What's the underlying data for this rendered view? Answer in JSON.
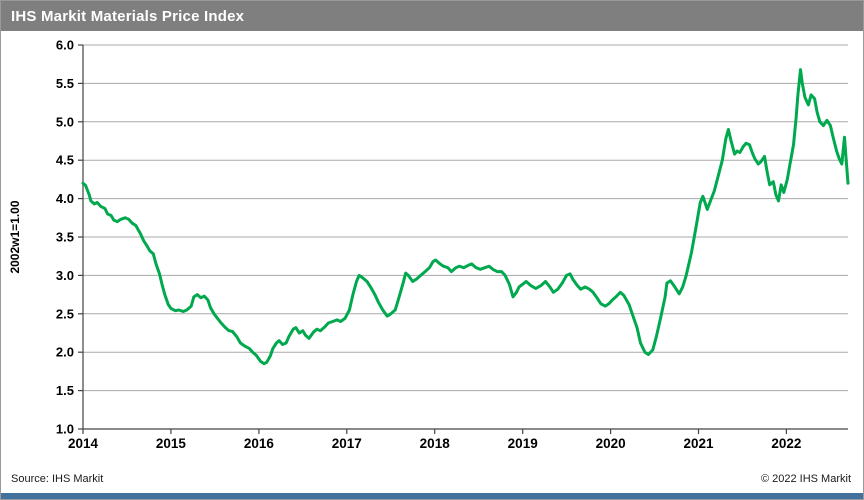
{
  "window": {
    "title": "IHS Markit Materials Price Index"
  },
  "footer": {
    "source": "Source: IHS Markit",
    "copyright": "© 2022  IHS Markit",
    "bar_color": "#41719c"
  },
  "colors": {
    "title_bar_bg": "#7f7f7f",
    "title_text": "#ffffff",
    "line": "#00a84e",
    "gridline": "#a9a9a9",
    "axis": "#444444",
    "tick_label": "#000000"
  },
  "chart_data": {
    "type": "line",
    "title": "IHS Markit Materials Price Index",
    "ylabel": "2002w1=1.00",
    "xlabel": "",
    "grid": true,
    "legend": "none",
    "ylim": [
      1.0,
      6.0
    ],
    "xlim": [
      2014.0,
      2022.7
    ],
    "y_ticks": [
      1.0,
      1.5,
      2.0,
      2.5,
      3.0,
      3.5,
      4.0,
      4.5,
      5.0,
      5.5,
      6.0
    ],
    "y_tick_labels": [
      "1.0",
      "1.5",
      "2.0",
      "2.5",
      "3.0",
      "3.5",
      "4.0",
      "4.5",
      "5.0",
      "5.5",
      "6.0"
    ],
    "x_ticks": [
      2014,
      2015,
      2016,
      2017,
      2018,
      2019,
      2020,
      2021,
      2022
    ],
    "x_tick_labels": [
      "2014",
      "2015",
      "2016",
      "2017",
      "2018",
      "2019",
      "2020",
      "2021",
      "2022"
    ],
    "series": [
      {
        "name": "IHS Markit Materials Price Index (2002w1=1.00)",
        "points": [
          [
            2014.0,
            4.2
          ],
          [
            2014.03,
            4.17
          ],
          [
            2014.07,
            4.05
          ],
          [
            2014.09,
            3.97
          ],
          [
            2014.13,
            3.93
          ],
          [
            2014.16,
            3.95
          ],
          [
            2014.2,
            3.9
          ],
          [
            2014.25,
            3.87
          ],
          [
            2014.28,
            3.8
          ],
          [
            2014.32,
            3.78
          ],
          [
            2014.35,
            3.72
          ],
          [
            2014.39,
            3.7
          ],
          [
            2014.43,
            3.73
          ],
          [
            2014.48,
            3.75
          ],
          [
            2014.52,
            3.73
          ],
          [
            2014.56,
            3.68
          ],
          [
            2014.6,
            3.65
          ],
          [
            2014.65,
            3.55
          ],
          [
            2014.69,
            3.45
          ],
          [
            2014.73,
            3.38
          ],
          [
            2014.76,
            3.32
          ],
          [
            2014.8,
            3.28
          ],
          [
            2014.83,
            3.15
          ],
          [
            2014.87,
            3.02
          ],
          [
            2014.9,
            2.88
          ],
          [
            2014.93,
            2.75
          ],
          [
            2014.97,
            2.62
          ],
          [
            2015.0,
            2.57
          ],
          [
            2015.05,
            2.54
          ],
          [
            2015.09,
            2.55
          ],
          [
            2015.14,
            2.53
          ],
          [
            2015.18,
            2.55
          ],
          [
            2015.23,
            2.6
          ],
          [
            2015.26,
            2.72
          ],
          [
            2015.3,
            2.75
          ],
          [
            2015.34,
            2.71
          ],
          [
            2015.38,
            2.73
          ],
          [
            2015.42,
            2.68
          ],
          [
            2015.45,
            2.58
          ],
          [
            2015.49,
            2.5
          ],
          [
            2015.53,
            2.44
          ],
          [
            2015.57,
            2.38
          ],
          [
            2015.62,
            2.32
          ],
          [
            2015.66,
            2.28
          ],
          [
            2015.7,
            2.27
          ],
          [
            2015.75,
            2.2
          ],
          [
            2015.79,
            2.12
          ],
          [
            2015.84,
            2.08
          ],
          [
            2015.89,
            2.05
          ],
          [
            2015.93,
            2.0
          ],
          [
            2015.97,
            1.96
          ],
          [
            2016.02,
            1.88
          ],
          [
            2016.06,
            1.85
          ],
          [
            2016.09,
            1.87
          ],
          [
            2016.13,
            1.95
          ],
          [
            2016.16,
            2.05
          ],
          [
            2016.2,
            2.12
          ],
          [
            2016.23,
            2.15
          ],
          [
            2016.27,
            2.1
          ],
          [
            2016.31,
            2.12
          ],
          [
            2016.34,
            2.2
          ],
          [
            2016.39,
            2.3
          ],
          [
            2016.42,
            2.32
          ],
          [
            2016.46,
            2.25
          ],
          [
            2016.5,
            2.28
          ],
          [
            2016.53,
            2.22
          ],
          [
            2016.57,
            2.18
          ],
          [
            2016.62,
            2.26
          ],
          [
            2016.66,
            2.3
          ],
          [
            2016.7,
            2.28
          ],
          [
            2016.75,
            2.33
          ],
          [
            2016.79,
            2.38
          ],
          [
            2016.84,
            2.4
          ],
          [
            2016.89,
            2.42
          ],
          [
            2016.93,
            2.4
          ],
          [
            2016.98,
            2.44
          ],
          [
            2017.03,
            2.55
          ],
          [
            2017.07,
            2.75
          ],
          [
            2017.11,
            2.92
          ],
          [
            2017.14,
            3.0
          ],
          [
            2017.18,
            2.97
          ],
          [
            2017.23,
            2.92
          ],
          [
            2017.27,
            2.85
          ],
          [
            2017.32,
            2.75
          ],
          [
            2017.36,
            2.65
          ],
          [
            2017.41,
            2.55
          ],
          [
            2017.46,
            2.47
          ],
          [
            2017.5,
            2.5
          ],
          [
            2017.55,
            2.55
          ],
          [
            2017.59,
            2.7
          ],
          [
            2017.64,
            2.9
          ],
          [
            2017.67,
            3.03
          ],
          [
            2017.7,
            3.0
          ],
          [
            2017.75,
            2.92
          ],
          [
            2017.79,
            2.95
          ],
          [
            2017.84,
            3.0
          ],
          [
            2017.89,
            3.05
          ],
          [
            2017.94,
            3.1
          ],
          [
            2017.98,
            3.18
          ],
          [
            2018.01,
            3.2
          ],
          [
            2018.06,
            3.15
          ],
          [
            2018.1,
            3.12
          ],
          [
            2018.15,
            3.1
          ],
          [
            2018.19,
            3.05
          ],
          [
            2018.24,
            3.1
          ],
          [
            2018.28,
            3.12
          ],
          [
            2018.33,
            3.1
          ],
          [
            2018.38,
            3.13
          ],
          [
            2018.42,
            3.15
          ],
          [
            2018.47,
            3.1
          ],
          [
            2018.52,
            3.08
          ],
          [
            2018.57,
            3.1
          ],
          [
            2018.62,
            3.12
          ],
          [
            2018.66,
            3.08
          ],
          [
            2018.71,
            3.05
          ],
          [
            2018.76,
            3.05
          ],
          [
            2018.8,
            3.0
          ],
          [
            2018.85,
            2.88
          ],
          [
            2018.89,
            2.72
          ],
          [
            2018.93,
            2.78
          ],
          [
            2018.96,
            2.85
          ],
          [
            2019.04,
            2.92
          ],
          [
            2019.09,
            2.87
          ],
          [
            2019.15,
            2.83
          ],
          [
            2019.21,
            2.87
          ],
          [
            2019.26,
            2.92
          ],
          [
            2019.31,
            2.85
          ],
          [
            2019.35,
            2.78
          ],
          [
            2019.4,
            2.82
          ],
          [
            2019.45,
            2.9
          ],
          [
            2019.5,
            3.0
          ],
          [
            2019.54,
            3.02
          ],
          [
            2019.57,
            2.95
          ],
          [
            2019.62,
            2.87
          ],
          [
            2019.66,
            2.82
          ],
          [
            2019.71,
            2.85
          ],
          [
            2019.76,
            2.82
          ],
          [
            2019.8,
            2.78
          ],
          [
            2019.85,
            2.7
          ],
          [
            2019.89,
            2.63
          ],
          [
            2019.94,
            2.6
          ],
          [
            2019.98,
            2.63
          ],
          [
            2020.02,
            2.68
          ],
          [
            2020.06,
            2.72
          ],
          [
            2020.11,
            2.78
          ],
          [
            2020.15,
            2.74
          ],
          [
            2020.21,
            2.62
          ],
          [
            2020.24,
            2.52
          ],
          [
            2020.3,
            2.32
          ],
          [
            2020.34,
            2.12
          ],
          [
            2020.39,
            2.0
          ],
          [
            2020.43,
            1.97
          ],
          [
            2020.48,
            2.03
          ],
          [
            2020.52,
            2.2
          ],
          [
            2020.57,
            2.45
          ],
          [
            2020.62,
            2.72
          ],
          [
            2020.64,
            2.9
          ],
          [
            2020.68,
            2.93
          ],
          [
            2020.73,
            2.85
          ],
          [
            2020.78,
            2.76
          ],
          [
            2020.82,
            2.85
          ],
          [
            2020.86,
            3.0
          ],
          [
            2020.92,
            3.3
          ],
          [
            2020.97,
            3.62
          ],
          [
            2021.02,
            3.95
          ],
          [
            2021.05,
            4.03
          ],
          [
            2021.1,
            3.86
          ],
          [
            2021.13,
            3.95
          ],
          [
            2021.18,
            4.1
          ],
          [
            2021.22,
            4.28
          ],
          [
            2021.27,
            4.5
          ],
          [
            2021.31,
            4.78
          ],
          [
            2021.34,
            4.9
          ],
          [
            2021.37,
            4.75
          ],
          [
            2021.41,
            4.58
          ],
          [
            2021.44,
            4.62
          ],
          [
            2021.47,
            4.6
          ],
          [
            2021.51,
            4.68
          ],
          [
            2021.54,
            4.72
          ],
          [
            2021.58,
            4.7
          ],
          [
            2021.61,
            4.6
          ],
          [
            2021.64,
            4.52
          ],
          [
            2021.68,
            4.45
          ],
          [
            2021.71,
            4.48
          ],
          [
            2021.75,
            4.55
          ],
          [
            2021.78,
            4.35
          ],
          [
            2021.81,
            4.18
          ],
          [
            2021.85,
            4.22
          ],
          [
            2021.88,
            4.05
          ],
          [
            2021.91,
            3.97
          ],
          [
            2021.94,
            4.18
          ],
          [
            2021.97,
            4.08
          ],
          [
            2022.01,
            4.25
          ],
          [
            2022.04,
            4.45
          ],
          [
            2022.08,
            4.7
          ],
          [
            2022.11,
            5.05
          ],
          [
            2022.13,
            5.35
          ],
          [
            2022.16,
            5.68
          ],
          [
            2022.18,
            5.5
          ],
          [
            2022.21,
            5.32
          ],
          [
            2022.25,
            5.22
          ],
          [
            2022.28,
            5.35
          ],
          [
            2022.32,
            5.3
          ],
          [
            2022.35,
            5.12
          ],
          [
            2022.38,
            5.0
          ],
          [
            2022.42,
            4.95
          ],
          [
            2022.46,
            5.02
          ],
          [
            2022.5,
            4.95
          ],
          [
            2022.53,
            4.8
          ],
          [
            2022.57,
            4.62
          ],
          [
            2022.6,
            4.52
          ],
          [
            2022.63,
            4.45
          ],
          [
            2022.66,
            4.8
          ],
          [
            2022.68,
            4.5
          ],
          [
            2022.7,
            4.2
          ]
        ]
      }
    ]
  }
}
